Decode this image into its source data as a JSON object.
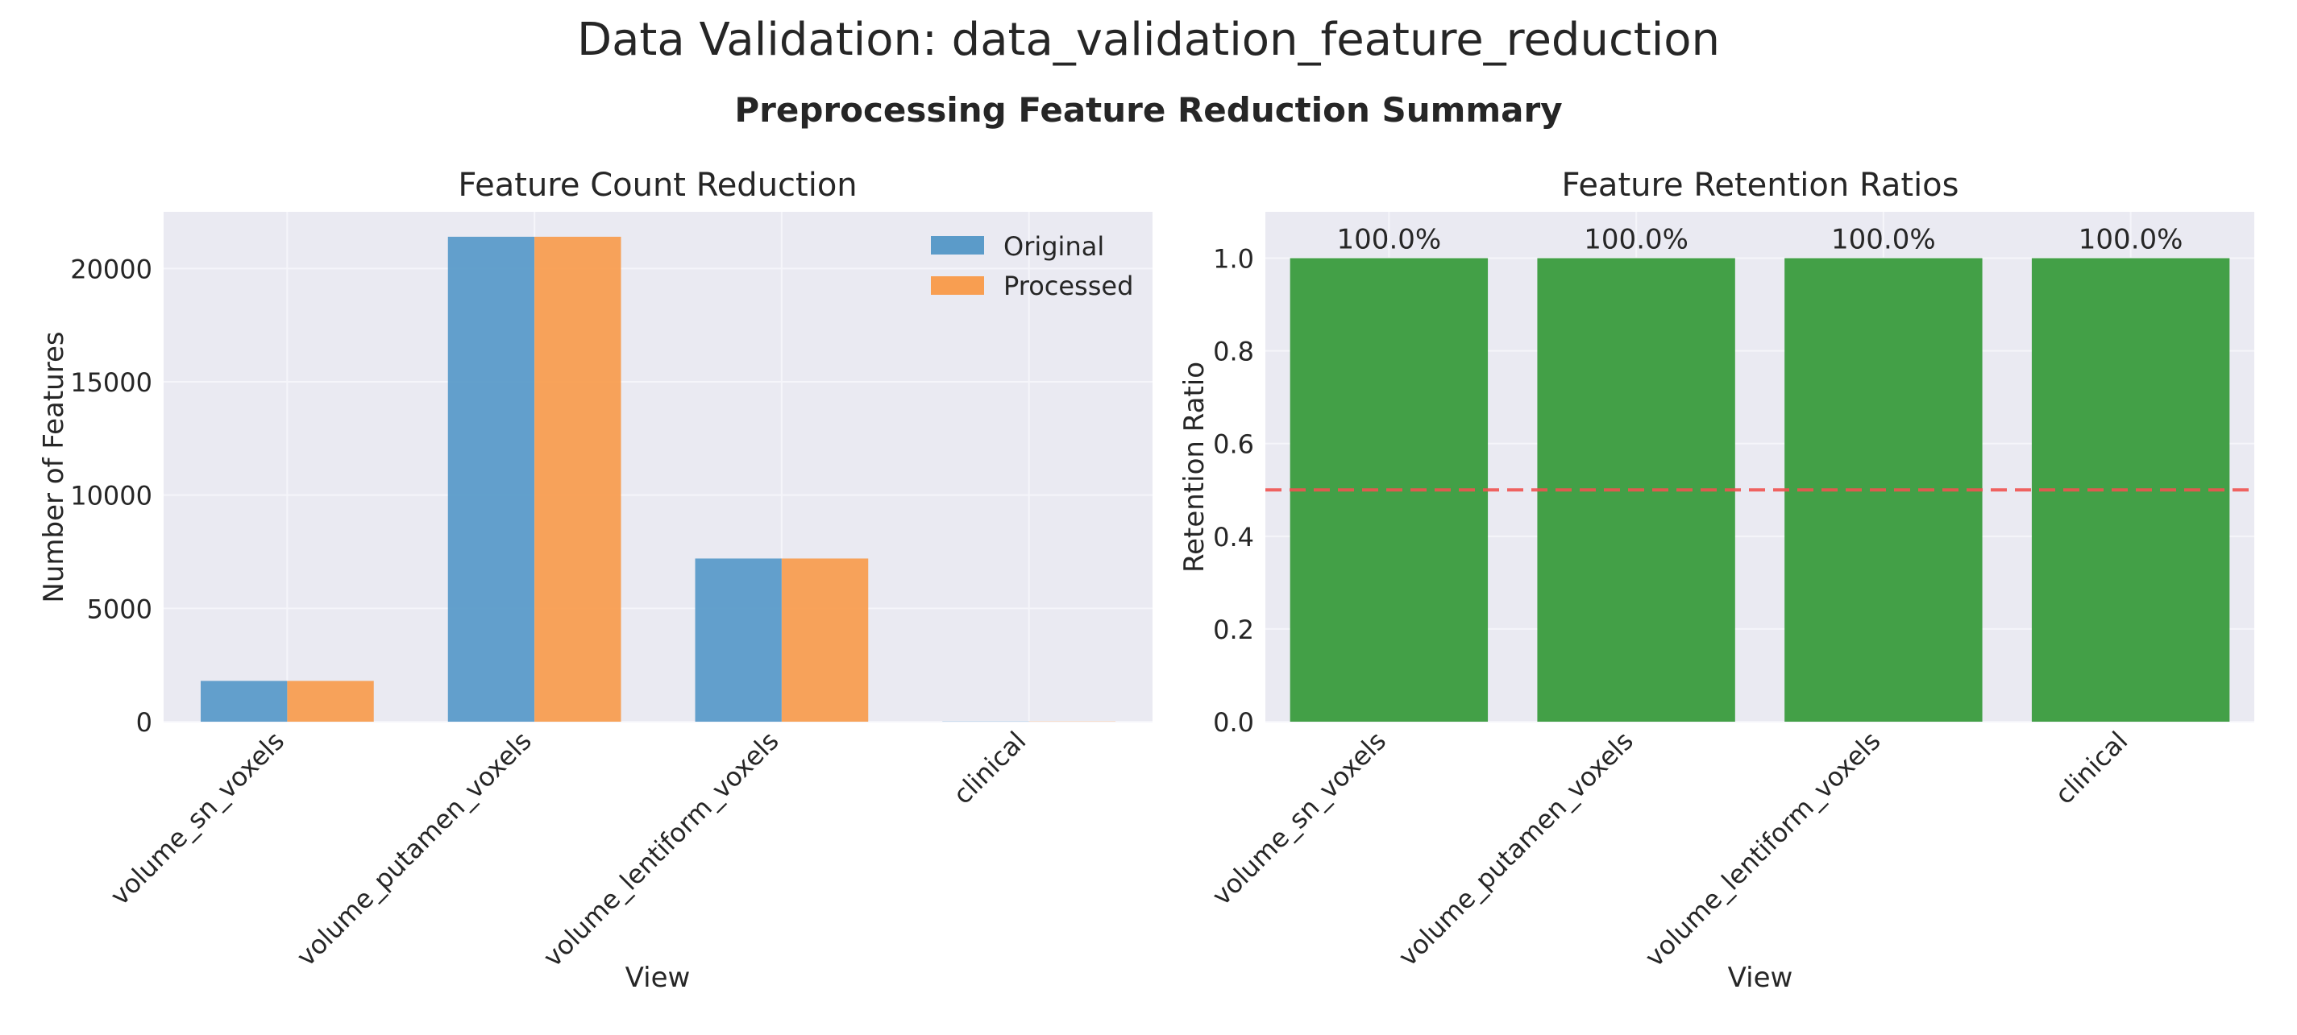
{
  "figure": {
    "suptitle": "Data Validation: data_validation_feature_reduction",
    "subtitle": "Preprocessing Feature Reduction Summary"
  },
  "colors": {
    "original": "#5b9bc9",
    "processed": "#f89e51",
    "retention": "#43a047",
    "threshold": "#ef5350",
    "panel_bg": "#eaeaf2",
    "grid": "#f5f5fa"
  },
  "chart_data": [
    {
      "type": "bar",
      "title": "Feature Count Reduction",
      "xlabel": "View",
      "ylabel": "Number of Features",
      "categories": [
        "volume_sn_voxels",
        "volume_putamen_voxels",
        "volume_lentiform_voxels",
        "clinical"
      ],
      "series": [
        {
          "name": "Original",
          "values": [
            1800,
            21400,
            7200,
            10
          ]
        },
        {
          "name": "Processed",
          "values": [
            1800,
            21400,
            7200,
            10
          ]
        }
      ],
      "ylim": [
        0,
        22500
      ],
      "yticks": [
        0,
        5000,
        10000,
        15000,
        20000
      ],
      "ytick_labels": [
        "0",
        "5000",
        "10000",
        "15000",
        "20000"
      ],
      "grid": true,
      "legend": "top-right"
    },
    {
      "type": "bar",
      "title": "Feature Retention Ratios",
      "xlabel": "View",
      "ylabel": "Retention Ratio",
      "categories": [
        "volume_sn_voxels",
        "volume_putamen_voxels",
        "volume_lentiform_voxels",
        "clinical"
      ],
      "values": [
        1.0,
        1.0,
        1.0,
        1.0
      ],
      "value_labels": [
        "100.0%",
        "100.0%",
        "100.0%",
        "100.0%"
      ],
      "threshold": 0.5,
      "ylim": [
        0,
        1.1
      ],
      "yticks": [
        0,
        0.2,
        0.4,
        0.6,
        0.8,
        1.0
      ],
      "ytick_labels": [
        "0.0",
        "0.2",
        "0.4",
        "0.6",
        "0.8",
        "1.0"
      ],
      "grid": true
    }
  ]
}
